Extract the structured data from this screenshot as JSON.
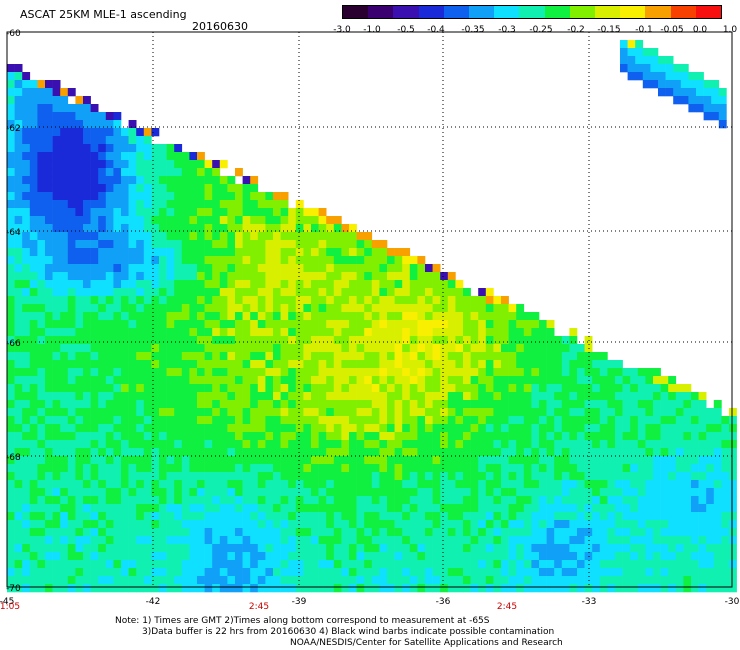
{
  "title": "ASCAT 25KM MLE-1 ascending",
  "date": "20160630",
  "colorbar": {
    "labels": [
      "-3.0",
      "-1.0",
      "-0.5",
      "-0.4",
      "-0.35",
      "-0.3",
      "-0.25",
      "-0.2",
      "-0.15",
      "-0.1",
      "-0.05",
      "0.0",
      "1.0"
    ],
    "colors": [
      "#2a0030",
      "#3a0070",
      "#3a10b0",
      "#1a2ad8",
      "#1060f0",
      "#10a0f8",
      "#10e0ff",
      "#10f0b0",
      "#10f040",
      "#80f000",
      "#d8f000",
      "#f8f000",
      "#f8a000",
      "#f84000",
      "#f81010"
    ]
  },
  "map": {
    "lat_labels": [
      "-60",
      "-62",
      "-64",
      "-66",
      "-68",
      "-70"
    ],
    "lon_labels": [
      "-45",
      "-42",
      "-39",
      "-36",
      "-33",
      "-30"
    ],
    "time_labels": [
      "1:05",
      "2:45",
      "2:45"
    ],
    "time_color": "#c80000"
  },
  "notes": {
    "line1": "Note: 1) Times are GMT 2)Times along bottom correspond to measurement at -65S",
    "line2": "3)Data buffer is 22 hrs from 20160630 4) Black wind barbs indicate possible contamination",
    "line3": "NOAA/NESDIS/Center for Satellite Applications and Research"
  }
}
